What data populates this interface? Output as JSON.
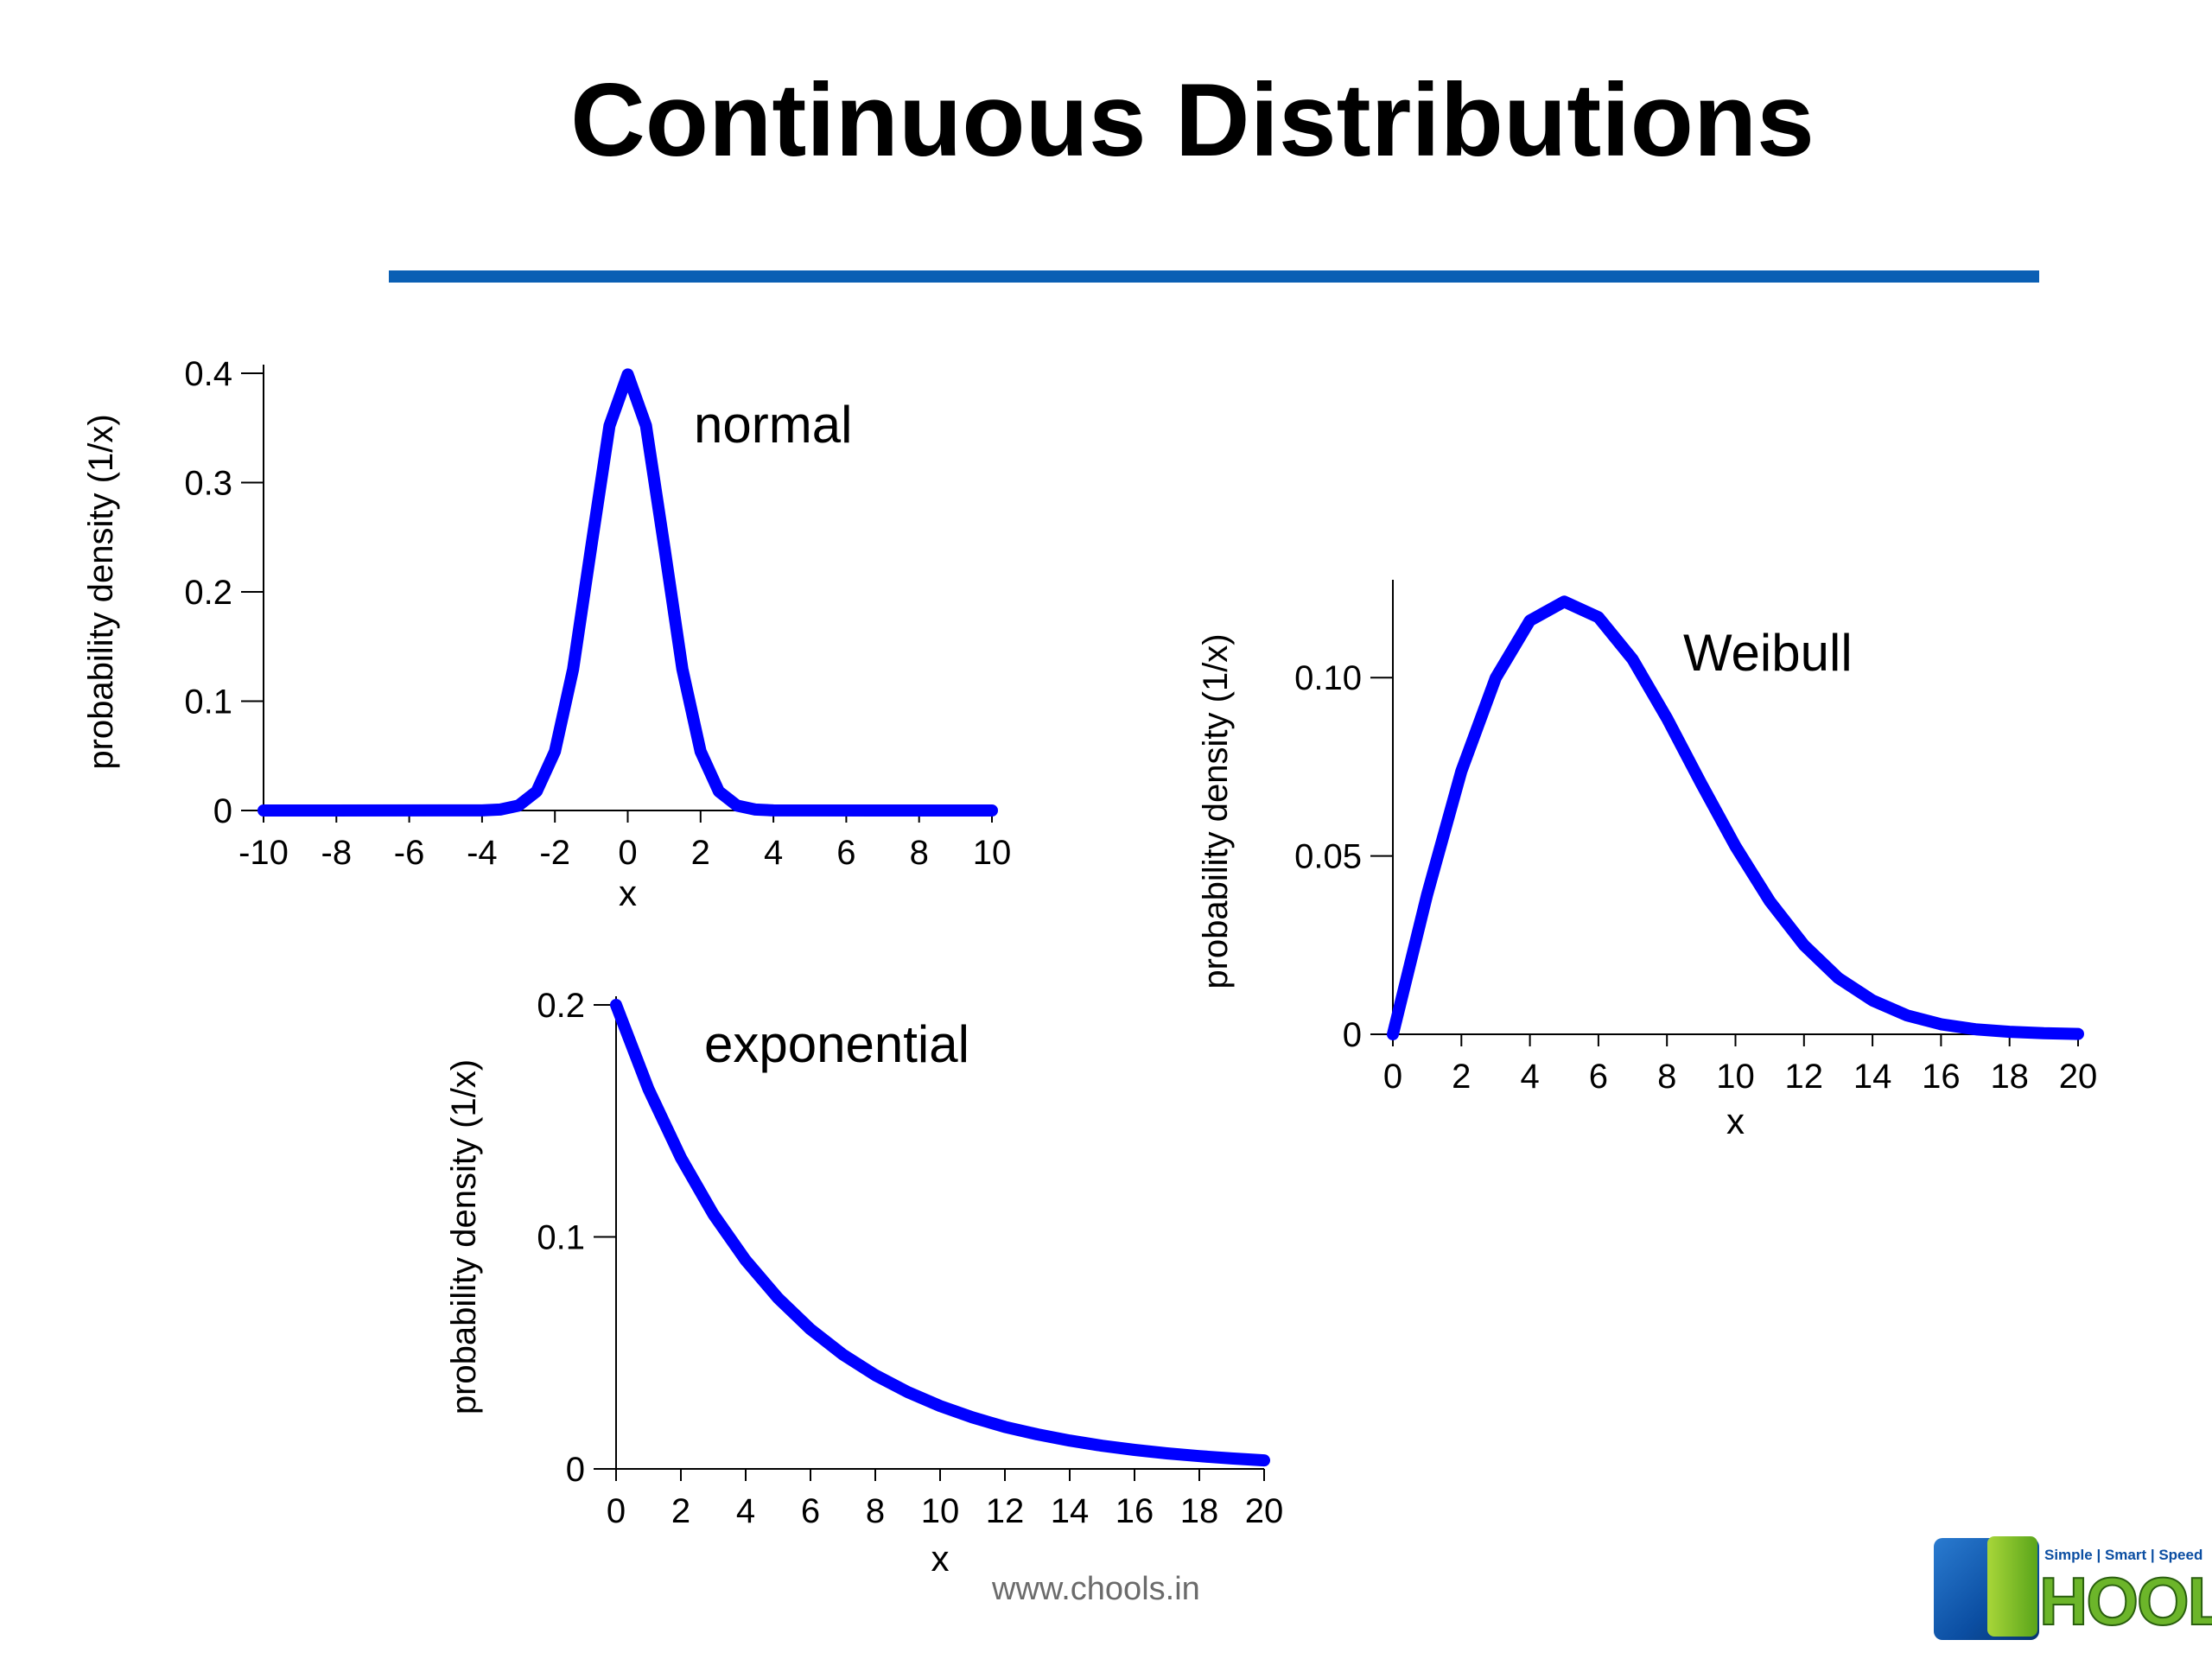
{
  "slide": {
    "title": "Continuous Distributions",
    "rule_color": "#0a5fb4",
    "footer_url": "www.chools.in",
    "logo": {
      "wordmark": "HOOLS",
      "tagline": "Simple | Smart | Speed"
    }
  },
  "colors": {
    "curve": "#0000ff",
    "axis": "#000000"
  },
  "chart_data": [
    {
      "type": "line",
      "title": "normal",
      "xlabel": "x",
      "ylabel": "probability density (1/x)",
      "xlim": [
        -10,
        10
      ],
      "ylim": [
        0,
        0.4
      ],
      "xticks": [
        -10,
        -8,
        -6,
        -4,
        -2,
        0,
        2,
        4,
        6,
        8,
        10
      ],
      "xtick_labels": [
        "-10",
        "-8",
        "-6",
        "-4",
        "-2",
        "0",
        "2",
        "4",
        "6",
        "8",
        "10"
      ],
      "yticks": [
        0,
        0.1,
        0.2,
        0.3,
        0.4
      ],
      "ytick_labels": [
        "0",
        "0.1",
        "0.2",
        "0.3",
        "0.4"
      ],
      "x": [
        -10,
        -4,
        -3.5,
        -3,
        -2.5,
        -2,
        -1.5,
        -1,
        -0.5,
        0,
        0.5,
        1,
        1.5,
        2,
        2.5,
        3,
        3.5,
        4,
        10
      ],
      "y": [
        0,
        0.0001,
        0.0009,
        0.0044,
        0.0175,
        0.054,
        0.1295,
        0.242,
        0.3521,
        0.3989,
        0.3521,
        0.242,
        0.1295,
        0.054,
        0.0175,
        0.0044,
        0.0009,
        0.0001,
        0
      ]
    },
    {
      "type": "line",
      "title": "Weibull",
      "xlabel": "x",
      "ylabel": "probability density (1/x)",
      "xlim": [
        0,
        20
      ],
      "ylim": [
        0,
        0.125
      ],
      "xticks": [
        0,
        2,
        4,
        6,
        8,
        10,
        12,
        14,
        16,
        18,
        20
      ],
      "xtick_labels": [
        "0",
        "2",
        "4",
        "6",
        "8",
        "10",
        "12",
        "14",
        "16",
        "18",
        "20"
      ],
      "yticks": [
        0,
        0.05,
        0.1
      ],
      "ytick_labels": [
        "0",
        "0.05",
        "0.10"
      ],
      "x": [
        0,
        1,
        2,
        3,
        4,
        5,
        6,
        7,
        8,
        9,
        10,
        11,
        12,
        13,
        14,
        15,
        16,
        17,
        18,
        19,
        20
      ],
      "y": [
        0,
        0.0392,
        0.0738,
        0.0999,
        0.116,
        0.1213,
        0.1169,
        0.1051,
        0.0886,
        0.0703,
        0.0527,
        0.0373,
        0.025,
        0.0158,
        0.0095,
        0.0053,
        0.0028,
        0.0014,
        0.0007,
        0.0003,
        0.0001
      ]
    },
    {
      "type": "line",
      "title": "exponential",
      "xlabel": "x",
      "ylabel": "probability density (1/x)",
      "xlim": [
        0,
        20
      ],
      "ylim": [
        0,
        0.2
      ],
      "xticks": [
        0,
        2,
        4,
        6,
        8,
        10,
        12,
        14,
        16,
        18,
        20
      ],
      "xtick_labels": [
        "0",
        "2",
        "4",
        "6",
        "8",
        "10",
        "12",
        "14",
        "16",
        "18",
        "20"
      ],
      "yticks": [
        0,
        0.1,
        0.2
      ],
      "ytick_labels": [
        "0",
        "0.1",
        "0.2"
      ],
      "x": [
        0,
        1,
        2,
        3,
        4,
        5,
        6,
        7,
        8,
        9,
        10,
        11,
        12,
        13,
        14,
        15,
        16,
        17,
        18,
        19,
        20
      ],
      "y": [
        0.2,
        0.1637,
        0.1341,
        0.1098,
        0.0899,
        0.0736,
        0.0602,
        0.0493,
        0.0404,
        0.0331,
        0.0271,
        0.0222,
        0.0181,
        0.0149,
        0.0122,
        0.01,
        0.0082,
        0.0067,
        0.0055,
        0.0045,
        0.0037
      ]
    }
  ]
}
